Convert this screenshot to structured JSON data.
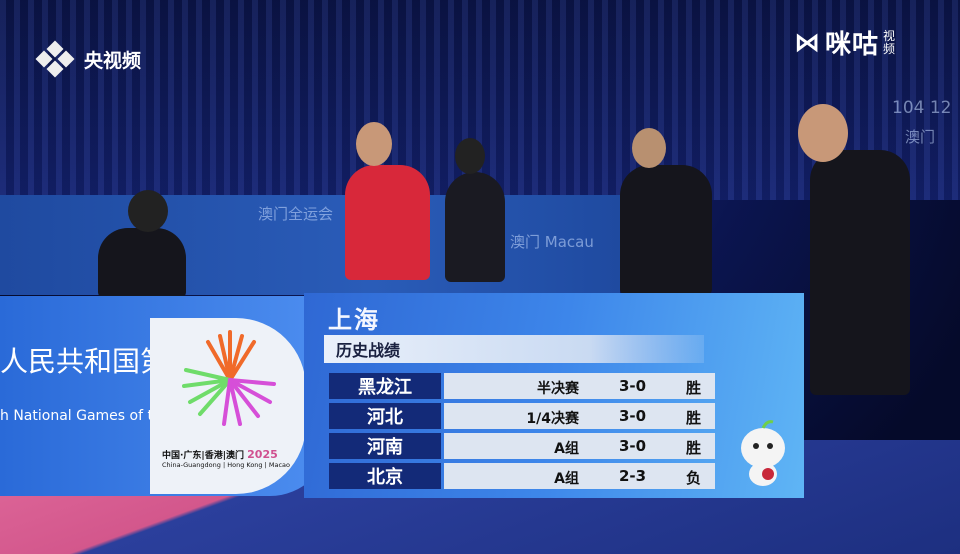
{
  "broadcaster": {
    "name": "央视频",
    "icon": "cctv-diamond-dots-logo"
  },
  "partner": {
    "name": "咪咕",
    "suffix": "视频"
  },
  "background": {
    "wall_texts": [
      "澳门全运会",
      "澳门 Macau",
      "104 12",
      "澳门"
    ],
    "board_cn": "人民共和国第十五届",
    "board_en": "h National Games of the People's Republ",
    "games_logo": {
      "cn": "中国·广东|香港|澳门",
      "year": "2025",
      "en": "China-Guangdong | Hong Kong | Macao"
    }
  },
  "overlay": {
    "team": "上海",
    "subtitle": "历史战绩",
    "rows": [
      {
        "opponent": "黑龙江",
        "stage": "半决赛",
        "score": "3-0",
        "result": "胜"
      },
      {
        "opponent": "河北",
        "stage": "1/4决赛",
        "score": "3-0",
        "result": "胜"
      },
      {
        "opponent": "河南",
        "stage": "A组",
        "score": "3-0",
        "result": "胜"
      },
      {
        "opponent": "北京",
        "stage": "A组",
        "score": "2-3",
        "result": "负"
      }
    ],
    "colors": {
      "opponent_bg": "#132a78",
      "detail_bg": "#dde5f1",
      "panel": "#3d86ea"
    }
  }
}
